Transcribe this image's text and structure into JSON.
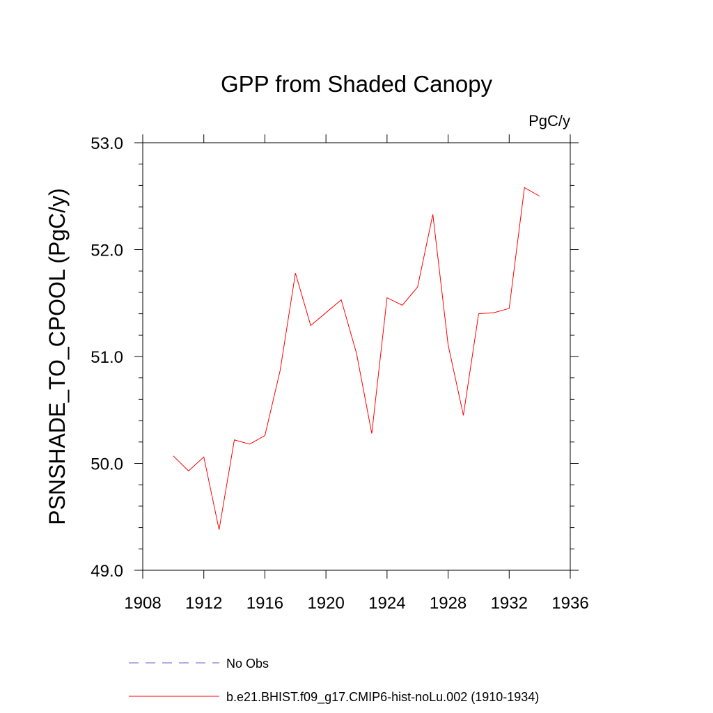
{
  "chart_data": {
    "type": "line",
    "title": "GPP from Shaded Canopy",
    "units_label": "PgC/y",
    "ylabel": "PSNSHADE_TO_CPOOL  (PgC/y)",
    "xlabel": "",
    "xlim": [
      1908,
      1936
    ],
    "ylim": [
      49.0,
      53.0
    ],
    "x_ticks": [
      1908,
      1912,
      1916,
      1920,
      1924,
      1928,
      1932,
      1936
    ],
    "x_tick_labels": [
      "1908",
      "1912",
      "1916",
      "1920",
      "1924",
      "1928",
      "1932",
      "1936"
    ],
    "y_ticks": [
      49.0,
      50.0,
      51.0,
      52.0,
      53.0
    ],
    "y_tick_labels": [
      "49.0",
      "50.0",
      "51.0",
      "52.0",
      "53.0"
    ],
    "grid": false,
    "legend_position": "bottom",
    "series": [
      {
        "name": "No Obs",
        "color": "#6a5acd",
        "dash": "dashed",
        "x": [],
        "values": []
      },
      {
        "name": "b.e21.BHIST.f09_g17.CMIP6-hist-noLu.002 (1910-1934)",
        "color": "#ff0000",
        "dash": "solid",
        "x": [
          1910,
          1911,
          1912,
          1913,
          1914,
          1915,
          1916,
          1917,
          1918,
          1919,
          1920,
          1921,
          1922,
          1923,
          1924,
          1925,
          1926,
          1927,
          1928,
          1929,
          1930,
          1931,
          1932,
          1933,
          1934
        ],
        "values": [
          50.07,
          49.93,
          50.06,
          49.38,
          50.22,
          50.18,
          50.26,
          50.87,
          51.78,
          51.29,
          51.41,
          51.53,
          51.03,
          50.28,
          51.55,
          51.48,
          51.65,
          52.33,
          51.11,
          50.45,
          51.4,
          51.41,
          51.45,
          52.58,
          52.5
        ]
      }
    ]
  }
}
